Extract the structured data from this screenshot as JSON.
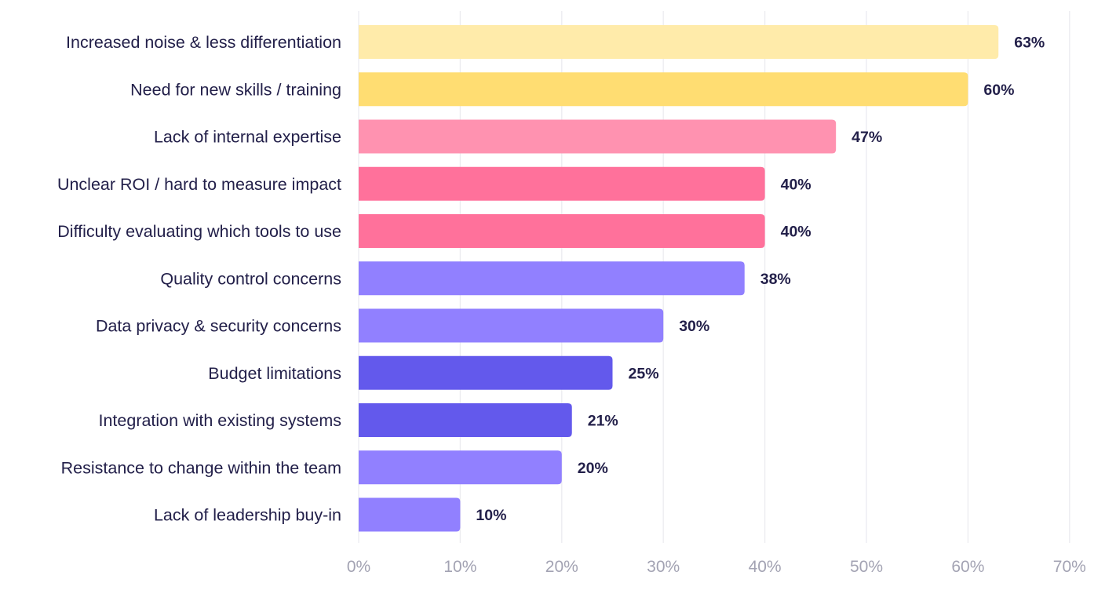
{
  "chart_data": {
    "type": "bar",
    "orientation": "horizontal",
    "categories": [
      "Increased noise & less differentiation",
      "Need for new skills / training",
      "Lack of internal expertise",
      "Unclear ROI / hard to measure impact",
      "Difficulty evaluating which tools to use",
      "Quality control concerns",
      "Data privacy & security concerns",
      "Budget limitations",
      "Integration with existing systems",
      "Resistance to change within the team",
      "Lack of leadership buy-in"
    ],
    "values": [
      63,
      60,
      47,
      40,
      40,
      38,
      30,
      25,
      21,
      20,
      10
    ],
    "value_labels": [
      "63%",
      "60%",
      "47%",
      "40%",
      "40%",
      "38%",
      "30%",
      "25%",
      "21%",
      "20%",
      "10%"
    ],
    "colors": [
      "#FFEBAA",
      "#FFDD72",
      "#FF92B0",
      "#FF719B",
      "#FF719B",
      "#9180FF",
      "#9180FF",
      "#6359EC",
      "#6359EC",
      "#9180FF",
      "#9180FF"
    ],
    "xlim": [
      0,
      70
    ],
    "x_ticks": [
      0,
      10,
      20,
      30,
      40,
      50,
      60,
      70
    ],
    "x_tick_labels": [
      "0%",
      "10%",
      "20%",
      "30%",
      "40%",
      "50%",
      "60%",
      "70%"
    ],
    "grid": "vertical",
    "title": "",
    "xlabel": "",
    "ylabel": ""
  }
}
